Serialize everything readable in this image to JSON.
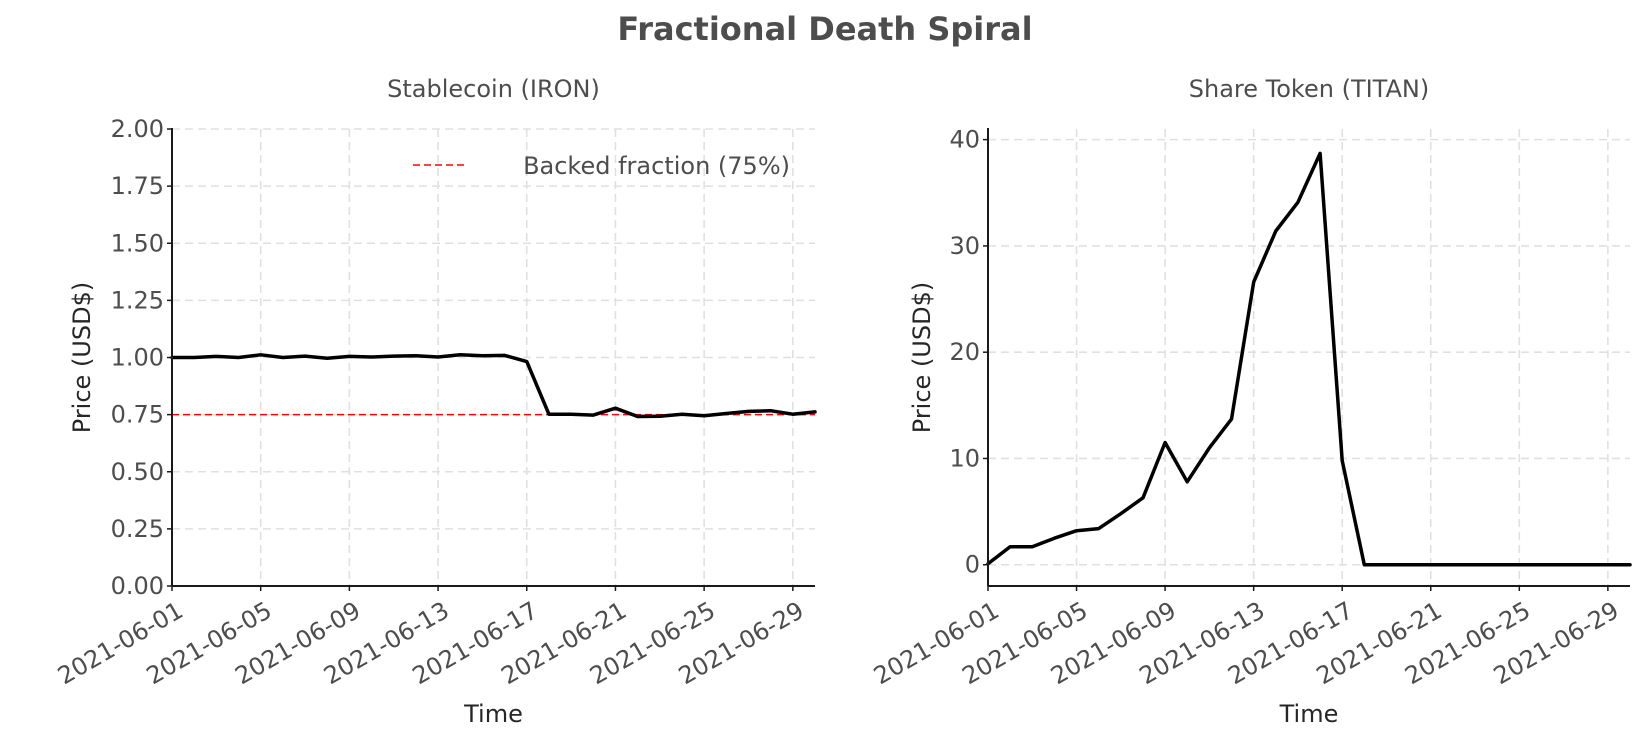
{
  "title": "Fractional Death Spiral",
  "chart_data": [
    {
      "type": "line",
      "title": "Stablecoin (IRON)",
      "xlabel": "Time",
      "ylabel": "Price (USD$)",
      "ylim": [
        0,
        2
      ],
      "yticks": [
        "0.00",
        "0.25",
        "0.50",
        "0.75",
        "1.00",
        "1.25",
        "1.50",
        "1.75",
        "2.00"
      ],
      "xlim": [
        "2021-06-01",
        "2021-06-30"
      ],
      "xticks": [
        "2021-06-01",
        "2021-06-05",
        "2021-06-09",
        "2021-06-13",
        "2021-06-17",
        "2021-06-21",
        "2021-06-25",
        "2021-06-29"
      ],
      "grid": true,
      "legend_position": "upper right",
      "x": [
        "2021-06-01",
        "2021-06-02",
        "2021-06-03",
        "2021-06-04",
        "2021-06-05",
        "2021-06-06",
        "2021-06-07",
        "2021-06-08",
        "2021-06-09",
        "2021-06-10",
        "2021-06-11",
        "2021-06-12",
        "2021-06-13",
        "2021-06-14",
        "2021-06-15",
        "2021-06-16",
        "2021-06-17",
        "2021-06-18",
        "2021-06-19",
        "2021-06-20",
        "2021-06-21",
        "2021-06-22",
        "2021-06-23",
        "2021-06-24",
        "2021-06-25",
        "2021-06-26",
        "2021-06-27",
        "2021-06-28",
        "2021-06-29",
        "2021-06-30"
      ],
      "series": [
        {
          "color": "#000000",
          "values": [
            1.0,
            1.0,
            1.005,
            1.0,
            1.012,
            1.0,
            1.006,
            0.997,
            1.005,
            1.002,
            1.006,
            1.008,
            1.002,
            1.012,
            1.008,
            1.009,
            0.982,
            0.752,
            0.752,
            0.748,
            0.778,
            0.742,
            0.743,
            0.752,
            0.745,
            0.755,
            0.764,
            0.767,
            0.752,
            0.762
          ]
        }
      ],
      "reference_lines": [
        {
          "name": "Backed fraction (75%)",
          "y": 0.75,
          "color": "#ff0000",
          "style": "dashed"
        }
      ]
    },
    {
      "type": "line",
      "title": "Share Token (TITAN)",
      "xlabel": "Time",
      "ylabel": "Price (USD$)",
      "ylim": [
        -2,
        41
      ],
      "yticks": [
        "0",
        "10",
        "20",
        "30",
        "40"
      ],
      "xlim": [
        "2021-06-01",
        "2021-06-30"
      ],
      "xticks": [
        "2021-06-01",
        "2021-06-05",
        "2021-06-09",
        "2021-06-13",
        "2021-06-17",
        "2021-06-21",
        "2021-06-25",
        "2021-06-29"
      ],
      "grid": true,
      "x": [
        "2021-06-01",
        "2021-06-02",
        "2021-06-03",
        "2021-06-04",
        "2021-06-05",
        "2021-06-06",
        "2021-06-07",
        "2021-06-08",
        "2021-06-09",
        "2021-06-10",
        "2021-06-11",
        "2021-06-12",
        "2021-06-13",
        "2021-06-14",
        "2021-06-15",
        "2021-06-16",
        "2021-06-17",
        "2021-06-18",
        "2021-06-19",
        "2021-06-20",
        "2021-06-21",
        "2021-06-22",
        "2021-06-23",
        "2021-06-24",
        "2021-06-25",
        "2021-06-26",
        "2021-06-27",
        "2021-06-28",
        "2021-06-29",
        "2021-06-30"
      ],
      "series": [
        {
          "color": "#000000",
          "values": [
            0.1,
            1.7,
            1.7,
            2.5,
            3.2,
            3.4,
            4.8,
            6.3,
            11.5,
            7.8,
            11.0,
            13.7,
            26.6,
            31.4,
            34.1,
            38.7,
            9.8,
            0.0,
            0.0,
            0.0,
            0.0,
            0.0,
            0.0,
            0.0,
            0.0,
            0.0,
            0.0,
            0.0,
            0.0,
            0.0
          ]
        }
      ]
    }
  ]
}
